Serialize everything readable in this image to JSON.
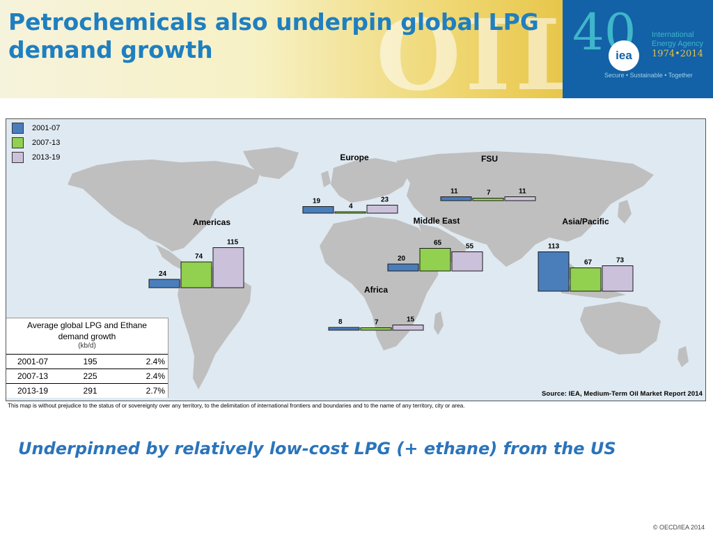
{
  "header": {
    "title": "Petrochemicals also underpin global LPG demand growth",
    "watermark": "OIL"
  },
  "logo": {
    "forty": "40",
    "iea": "iea",
    "agency_line1": "International",
    "agency_line2": "Energy Agency",
    "years": "1974•2014",
    "tagline": "Secure • Sustainable • Together"
  },
  "colors": {
    "p1": "#4a7ebb",
    "p2": "#92d050",
    "p3": "#ccc1da",
    "ocean": "#dfe9f1",
    "land": "#bfbfbf",
    "title": "#1f7fc0"
  },
  "chart_data": {
    "type": "bar",
    "units": "kb/d",
    "series_names": [
      "2001-07",
      "2007-13",
      "2013-19"
    ],
    "regions": [
      {
        "name": "Americas",
        "values": [
          24,
          74,
          115
        ]
      },
      {
        "name": "Europe",
        "values": [
          19,
          4,
          23
        ]
      },
      {
        "name": "FSU",
        "values": [
          11,
          7,
          11
        ]
      },
      {
        "name": "Middle East",
        "values": [
          20,
          65,
          55
        ]
      },
      {
        "name": "Africa",
        "values": [
          8,
          7,
          15
        ]
      },
      {
        "name": "Asia/Pacific",
        "values": [
          113,
          67,
          73
        ]
      }
    ]
  },
  "summary": {
    "title_line1": "Average global LPG and Ethane",
    "title_line2": "demand growth",
    "unit": "(kb/d)",
    "rows": [
      {
        "period": "2001-07",
        "value": "195",
        "growth": "2.4%"
      },
      {
        "period": "2007-13",
        "value": "225",
        "growth": "2.4%"
      },
      {
        "period": "2013-19",
        "value": "291",
        "growth": "2.7%"
      }
    ]
  },
  "source": "Source: IEA, Medium-Term Oil Market Report 2014",
  "disclaimer": "This map is without prejudice to the status of or sovereignty over any territory, to the delimitation of international frontiers and boundaries and to the name of any territory, city or area.",
  "subtitle": "Underpinned by relatively low-cost LPG (+ ethane) from the US",
  "copyright": "© OECD/IEA 2014"
}
